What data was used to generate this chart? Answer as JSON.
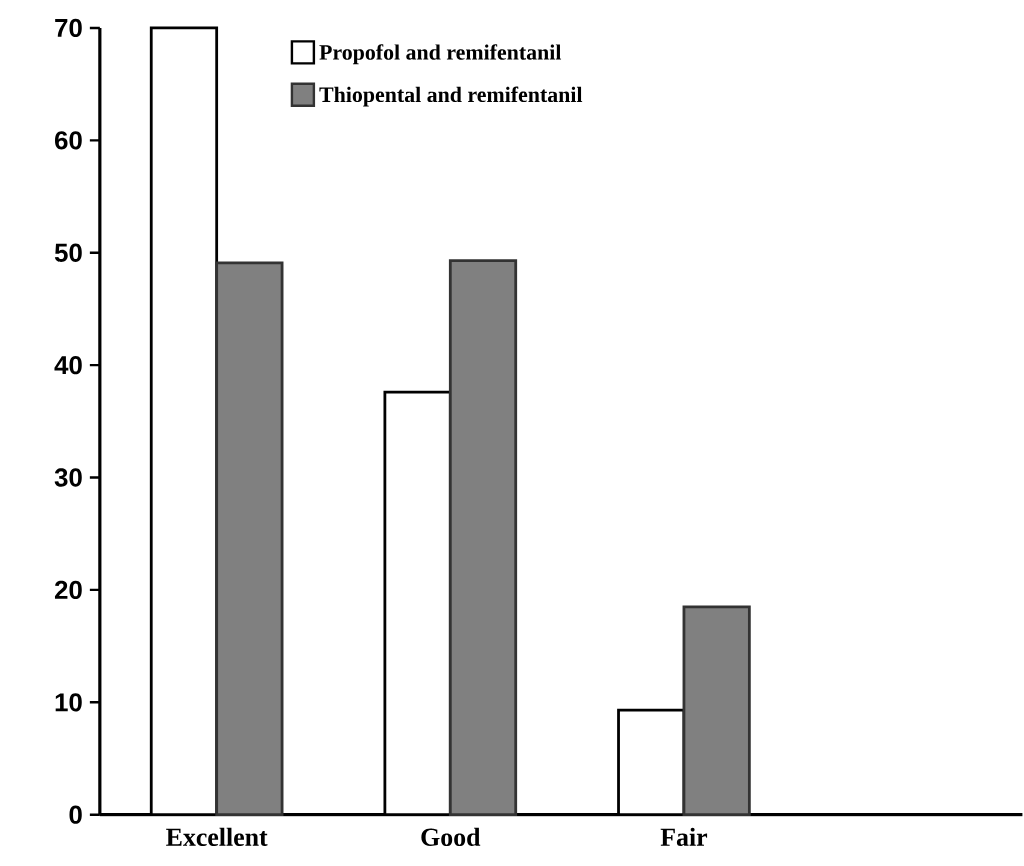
{
  "chart_data": {
    "type": "bar",
    "categories": [
      "Excellent",
      "Good",
      "Fair"
    ],
    "series": [
      {
        "name": "Propofol and remifentanil",
        "color": "#ffffff",
        "values": [
          70,
          37.6,
          9.3
        ]
      },
      {
        "name": "Thiopental and remifentanil",
        "color": "#808080",
        "values": [
          49.1,
          49.3,
          18.5
        ]
      }
    ],
    "ylim": [
      0,
      70
    ],
    "yticks": [
      0,
      10,
      20,
      30,
      40,
      50,
      60,
      70
    ],
    "grid": false,
    "legend": "top"
  }
}
